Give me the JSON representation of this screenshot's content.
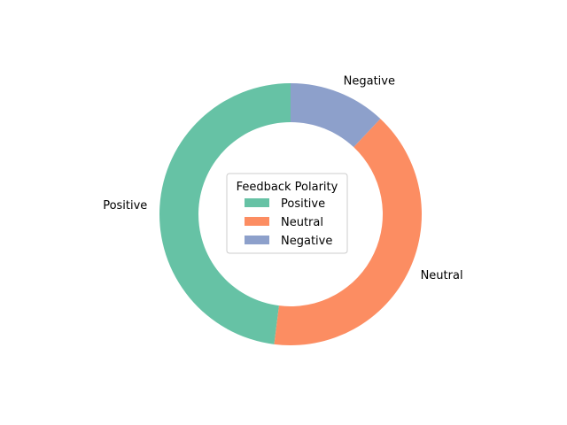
{
  "chart_data": {
    "type": "pie",
    "donut": true,
    "categories": [
      "Positive",
      "Neutral",
      "Negative"
    ],
    "values": [
      48,
      40,
      12
    ],
    "colors": [
      "#66c2a5",
      "#fc8d62",
      "#8da0cb"
    ],
    "start_angle_deg": 90,
    "direction": "counterclockwise",
    "title": "",
    "legend": {
      "title": "Feedback Polarity",
      "entries": [
        "Positive",
        "Neutral",
        "Negative"
      ],
      "placement": "center"
    }
  }
}
